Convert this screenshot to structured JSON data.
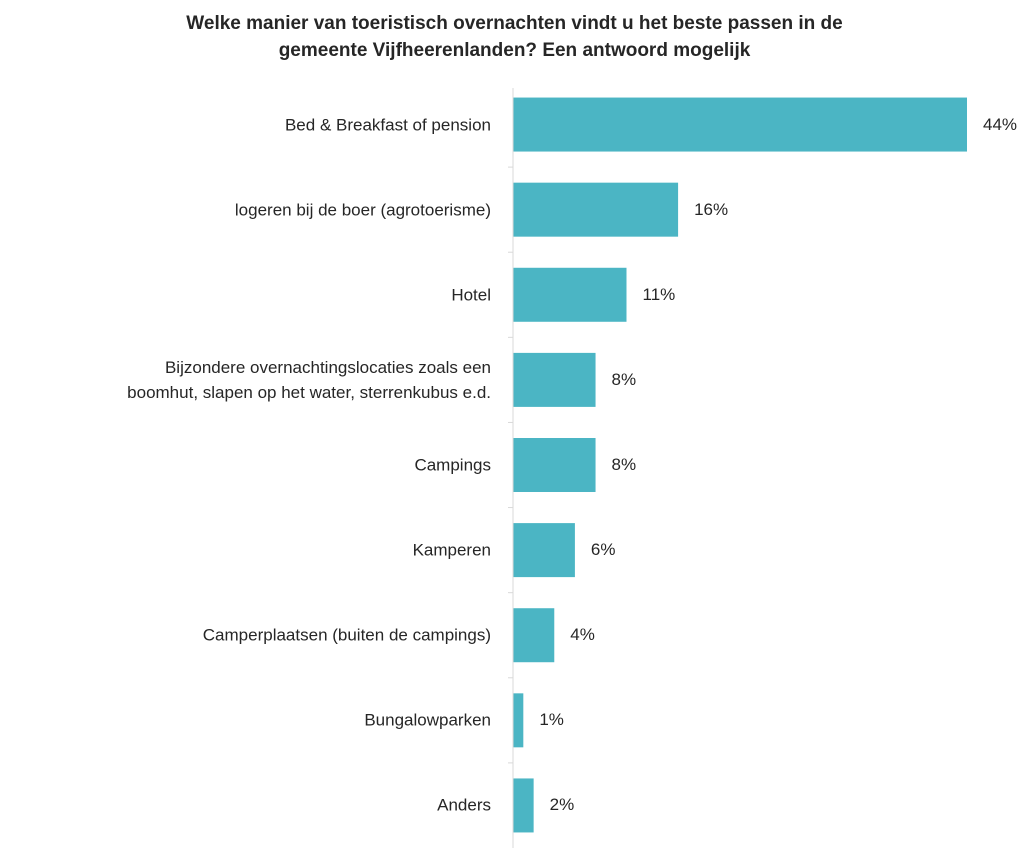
{
  "chart_data": {
    "type": "bar",
    "orientation": "horizontal",
    "title": "Welke manier van toeristisch overnachten vindt u het beste passen in de\ngemeente Vijfheerenlanden? Een antwoord mogelijk",
    "categories": [
      "Bed & Breakfast of pension",
      "logeren bij de boer (agrotoerisme)",
      "Hotel",
      "Bijzondere overnachtingslocaties zoals een\nboomhut, slapen op het water, sterrenkubus e.d.",
      "Campings",
      "Kamperen",
      "Camperplaatsen (buiten de campings)",
      "Bungalowparken",
      "Anders"
    ],
    "values": [
      44,
      16,
      11,
      8,
      8,
      6,
      4,
      1,
      2
    ],
    "value_labels": [
      "44%",
      "16%",
      "11%",
      "8%",
      "8%",
      "6%",
      "4%",
      "1%",
      "2%"
    ],
    "color": "#4bb5c4"
  }
}
